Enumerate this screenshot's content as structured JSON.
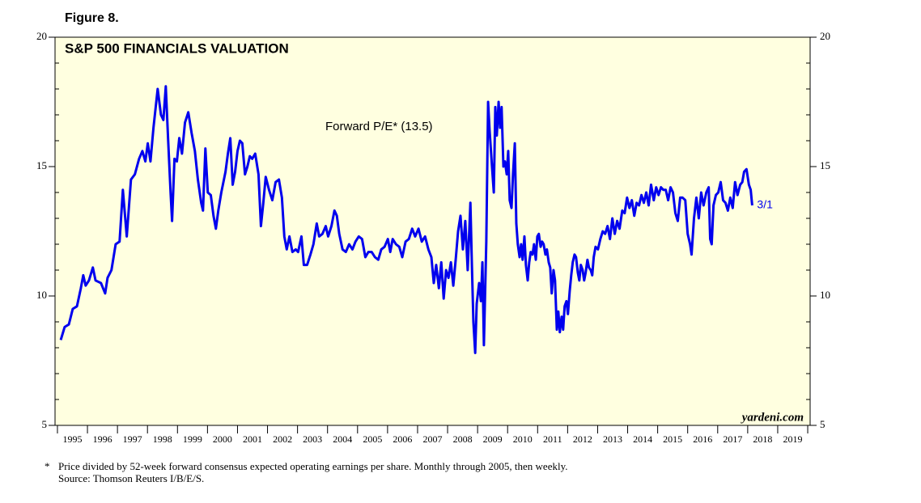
{
  "chart_data": {
    "type": "line",
    "figure_label": "Figure 8.",
    "title": "S&P 500 FINANCIALS VALUATION",
    "end_label": "3/1",
    "watermark": "yardeni.com",
    "notes": {
      "marker": "*",
      "lines": [
        "Price divided by 52-week forward consensus expected operating earnings per share. Monthly through 2005, then weekly.",
        "Source: Thomson Reuters I/B/E/S."
      ]
    },
    "xlim": [
      1994.92,
      2020.08
    ],
    "xticks": [
      1995,
      1996,
      1997,
      1998,
      1999,
      2000,
      2001,
      2002,
      2003,
      2004,
      2005,
      2006,
      2007,
      2008,
      2009,
      2010,
      2011,
      2012,
      2013,
      2014,
      2015,
      2016,
      2017,
      2018,
      2019,
      2020
    ],
    "xtick_labels": [
      "1995",
      "1996",
      "1997",
      "1998",
      "1999",
      "2000",
      "2001",
      "2002",
      "2003",
      "2004",
      "2005",
      "2006",
      "2007",
      "2008",
      "2009",
      "2010",
      "2011",
      "2012",
      "2013",
      "2014",
      "2015",
      "2016",
      "2017",
      "2018",
      "2019"
    ],
    "ylim": [
      5,
      20
    ],
    "yticks": [
      5,
      10,
      15,
      20
    ],
    "yminor_ticks": [
      6,
      7,
      8,
      9,
      11,
      12,
      13,
      14,
      16,
      17,
      18,
      19
    ],
    "background": "#ffffe0",
    "x": [
      1995.11,
      1995.24,
      1995.38,
      1995.51,
      1995.65,
      1995.78,
      1995.86,
      1995.94,
      1996.05,
      1996.18,
      1996.27,
      1996.45,
      1996.59,
      1996.67,
      1996.8,
      1996.94,
      1997.07,
      1997.18,
      1997.31,
      1997.45,
      1997.58,
      1997.72,
      1997.83,
      1997.93,
      1998.01,
      1998.1,
      1998.2,
      1998.34,
      1998.45,
      1998.53,
      1998.61,
      1998.69,
      1998.77,
      1998.82,
      1998.9,
      1998.98,
      1999.06,
      1999.15,
      1999.25,
      1999.36,
      1999.47,
      1999.58,
      1999.68,
      1999.79,
      1999.85,
      1999.93,
      2000.01,
      2000.11,
      2000.2,
      2000.28,
      2000.36,
      2000.46,
      2000.6,
      2000.68,
      2000.76,
      2000.84,
      2000.92,
      2001.0,
      2001.08,
      2001.16,
      2001.25,
      2001.33,
      2001.41,
      2001.49,
      2001.59,
      2001.7,
      2001.78,
      2001.86,
      2001.94,
      2002.05,
      2002.16,
      2002.27,
      2002.38,
      2002.48,
      2002.56,
      2002.64,
      2002.73,
      2002.83,
      2002.94,
      2003.02,
      2003.13,
      2003.21,
      2003.32,
      2003.43,
      2003.53,
      2003.64,
      2003.72,
      2003.83,
      2003.94,
      2004.02,
      2004.13,
      2004.23,
      2004.31,
      2004.39,
      2004.5,
      2004.61,
      2004.72,
      2004.83,
      2004.93,
      2005.04,
      2005.15,
      2005.26,
      2005.36,
      2005.47,
      2005.58,
      2005.69,
      2005.79,
      2005.9,
      2006.01,
      2006.09,
      2006.17,
      2006.28,
      2006.39,
      2006.49,
      2006.6,
      2006.71,
      2006.82,
      2006.92,
      2007.03,
      2007.14,
      2007.25,
      2007.36,
      2007.46,
      2007.54,
      2007.62,
      2007.71,
      2007.79,
      2007.87,
      2007.95,
      2008.03,
      2008.11,
      2008.19,
      2008.27,
      2008.35,
      2008.43,
      2008.51,
      2008.59,
      2008.67,
      2008.76,
      2008.81,
      2008.86,
      2008.92,
      2008.97,
      2009.05,
      2009.11,
      2009.16,
      2009.21,
      2009.29,
      2009.35,
      2009.4,
      2009.48,
      2009.54,
      2009.59,
      2009.64,
      2009.7,
      2009.75,
      2009.8,
      2009.86,
      2009.91,
      2009.97,
      2010.02,
      2010.07,
      2010.13,
      2010.18,
      2010.24,
      2010.29,
      2010.34,
      2010.4,
      2010.45,
      2010.5,
      2010.56,
      2010.61,
      2010.67,
      2010.72,
      2010.77,
      2010.83,
      2010.88,
      2010.94,
      2010.99,
      2011.04,
      2011.1,
      2011.15,
      2011.2,
      2011.26,
      2011.31,
      2011.37,
      2011.42,
      2011.47,
      2011.53,
      2011.58,
      2011.64,
      2011.69,
      2011.74,
      2011.8,
      2011.85,
      2011.9,
      2011.96,
      2012.01,
      2012.07,
      2012.12,
      2012.17,
      2012.23,
      2012.28,
      2012.34,
      2012.39,
      2012.44,
      2012.5,
      2012.55,
      2012.6,
      2012.66,
      2012.71,
      2012.77,
      2012.82,
      2012.87,
      2012.93,
      2013.01,
      2013.09,
      2013.17,
      2013.25,
      2013.33,
      2013.41,
      2013.49,
      2013.57,
      2013.65,
      2013.73,
      2013.82,
      2013.9,
      2013.98,
      2014.06,
      2014.14,
      2014.22,
      2014.3,
      2014.38,
      2014.46,
      2014.54,
      2014.62,
      2014.7,
      2014.78,
      2014.87,
      2014.95,
      2015.03,
      2015.11,
      2015.19,
      2015.27,
      2015.35,
      2015.43,
      2015.51,
      2015.59,
      2015.67,
      2015.75,
      2015.83,
      2015.92,
      2016.0,
      2016.08,
      2016.13,
      2016.21,
      2016.29,
      2016.37,
      2016.45,
      2016.53,
      2016.62,
      2016.7,
      2016.75,
      2016.8,
      2016.86,
      2016.94,
      2017.02,
      2017.1,
      2017.18,
      2017.26,
      2017.34,
      2017.42,
      2017.5,
      2017.58,
      2017.66,
      2017.75,
      2017.82,
      2017.88,
      2017.96,
      2018.04,
      2018.1,
      2018.15
    ],
    "series": [
      {
        "name": "Forward P/E* (13.5)",
        "color": "#0000ee",
        "values": [
          8.3,
          8.8,
          8.9,
          9.5,
          9.6,
          10.3,
          10.8,
          10.4,
          10.6,
          11.1,
          10.6,
          10.5,
          10.1,
          10.7,
          11.0,
          12.0,
          12.1,
          14.1,
          12.3,
          14.5,
          14.7,
          15.3,
          15.6,
          15.2,
          15.9,
          15.2,
          16.5,
          18.0,
          17.0,
          16.8,
          18.1,
          16.0,
          14.0,
          12.9,
          15.3,
          15.2,
          16.1,
          15.5,
          16.7,
          17.1,
          16.3,
          15.6,
          14.5,
          13.6,
          13.3,
          15.7,
          14.0,
          13.9,
          13.1,
          12.6,
          13.3,
          14.0,
          14.8,
          15.5,
          16.1,
          14.3,
          14.8,
          15.6,
          16.0,
          15.9,
          14.7,
          15.0,
          15.4,
          15.3,
          15.5,
          14.7,
          12.7,
          13.6,
          14.6,
          14.1,
          13.7,
          14.4,
          14.5,
          13.8,
          12.3,
          11.8,
          12.3,
          11.7,
          11.8,
          11.7,
          12.3,
          11.2,
          11.2,
          11.6,
          12.0,
          12.8,
          12.3,
          12.4,
          12.7,
          12.3,
          12.7,
          13.3,
          13.1,
          12.4,
          11.8,
          11.7,
          12.0,
          11.8,
          12.1,
          12.3,
          12.2,
          11.5,
          11.7,
          11.7,
          11.5,
          11.4,
          11.8,
          11.9,
          12.2,
          11.7,
          12.2,
          12.0,
          11.9,
          11.5,
          12.1,
          12.2,
          12.6,
          12.3,
          12.6,
          12.1,
          12.3,
          11.8,
          11.5,
          10.5,
          11.2,
          10.3,
          11.3,
          9.9,
          11.0,
          10.7,
          11.3,
          10.4,
          11.4,
          12.5,
          13.1,
          11.8,
          12.9,
          11.0,
          13.6,
          11.2,
          9.0,
          7.8,
          9.7,
          10.5,
          9.8,
          11.3,
          8.1,
          12.1,
          17.5,
          16.4,
          15.0,
          14.0,
          17.3,
          16.2,
          17.5,
          16.5,
          17.3,
          15.0,
          15.2,
          14.7,
          15.6,
          13.7,
          13.4,
          14.7,
          15.9,
          12.8,
          12.0,
          11.5,
          12.0,
          11.4,
          12.3,
          11.2,
          10.6,
          11.3,
          11.7,
          11.6,
          12.0,
          11.4,
          12.3,
          12.4,
          11.9,
          12.1,
          12.0,
          11.6,
          11.8,
          11.3,
          11.1,
          10.1,
          11.0,
          10.6,
          8.7,
          9.4,
          8.6,
          9.2,
          8.7,
          9.6,
          9.8,
          9.3,
          10.2,
          10.8,
          11.3,
          11.6,
          11.5,
          10.9,
          10.6,
          11.2,
          11.0,
          10.6,
          10.9,
          11.4,
          11.1,
          11.0,
          10.8,
          11.5,
          11.9,
          11.8,
          12.2,
          12.5,
          12.4,
          12.7,
          12.2,
          13.0,
          12.4,
          12.9,
          12.6,
          13.3,
          13.2,
          13.8,
          13.4,
          13.7,
          13.1,
          13.6,
          13.5,
          13.9,
          13.6,
          14.0,
          13.5,
          14.3,
          13.7,
          14.2,
          13.9,
          14.2,
          14.1,
          14.1,
          13.7,
          14.2,
          14.0,
          13.2,
          12.9,
          13.8,
          13.8,
          13.7,
          12.4,
          12.0,
          11.6,
          13.0,
          13.8,
          13.0,
          14.0,
          13.5,
          14.0,
          14.2,
          12.2,
          12.0,
          13.5,
          13.9,
          14.0,
          14.4,
          13.7,
          13.6,
          13.3,
          13.8,
          13.4,
          14.4,
          13.9,
          14.3,
          14.4,
          14.8,
          14.9,
          14.3,
          14.1,
          13.5
        ]
      }
    ]
  }
}
